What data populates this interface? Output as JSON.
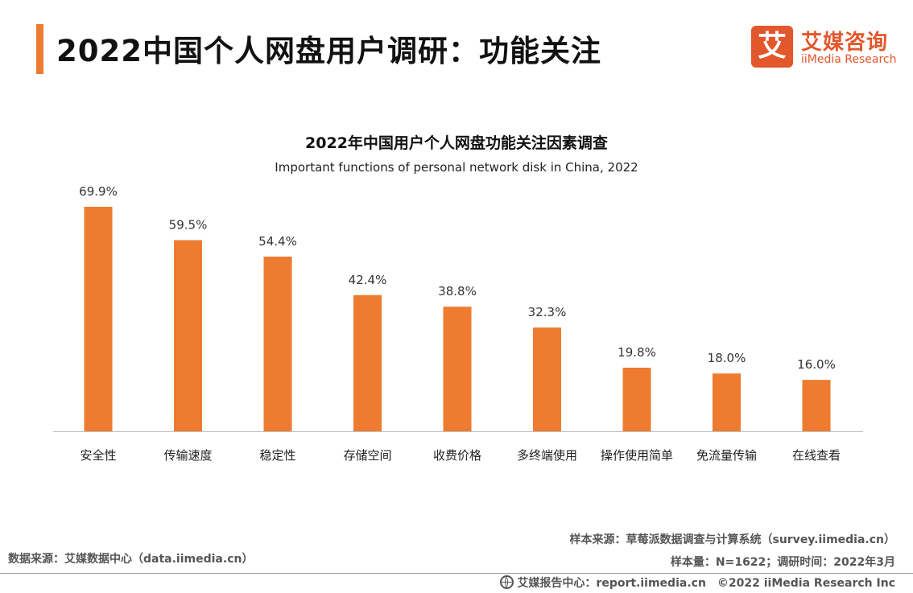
{
  "header": {
    "title": "2022中国个人网盘用户调研：功能关注",
    "logo_mark": "艾",
    "logo_cn": "艾媒咨询",
    "logo_en": "iiMedia Research"
  },
  "chart_data": {
    "type": "bar",
    "title": "2022年中国用户个人网盘功能关注因素调查",
    "subtitle": "Important functions of personal network disk in China, 2022",
    "categories": [
      "安全性",
      "传输速度",
      "稳定性",
      "存储空间",
      "收费价格",
      "多终端使用",
      "操作使用简单",
      "免流量传输",
      "在线查看"
    ],
    "values": [
      69.9,
      59.5,
      54.4,
      42.4,
      38.8,
      32.3,
      19.8,
      18.0,
      16.0
    ],
    "labels": [
      "69.9%",
      "59.5%",
      "54.4%",
      "42.4%",
      "38.8%",
      "32.3%",
      "19.8%",
      "18.0%",
      "16.0%"
    ],
    "unit": "%",
    "ylim": [
      0,
      69.9
    ],
    "grid": false,
    "legend": "none",
    "bar_color": "#ee7b30"
  },
  "footer": {
    "data_source": "数据来源：艾媒数据中心（data.iimedia.cn）",
    "sample_source": "样本来源：草莓派数据调查与计算系统（survey.iimedia.cn）",
    "sample_size": "样本量：N=1622；调研时间：2022年3月",
    "report_center": "艾媒报告中心：report.iimedia.cn",
    "copyright": "©2022 iiMedia Research Inc"
  },
  "colors": {
    "accent": "#ee7b30",
    "brand": "#e2572b"
  }
}
